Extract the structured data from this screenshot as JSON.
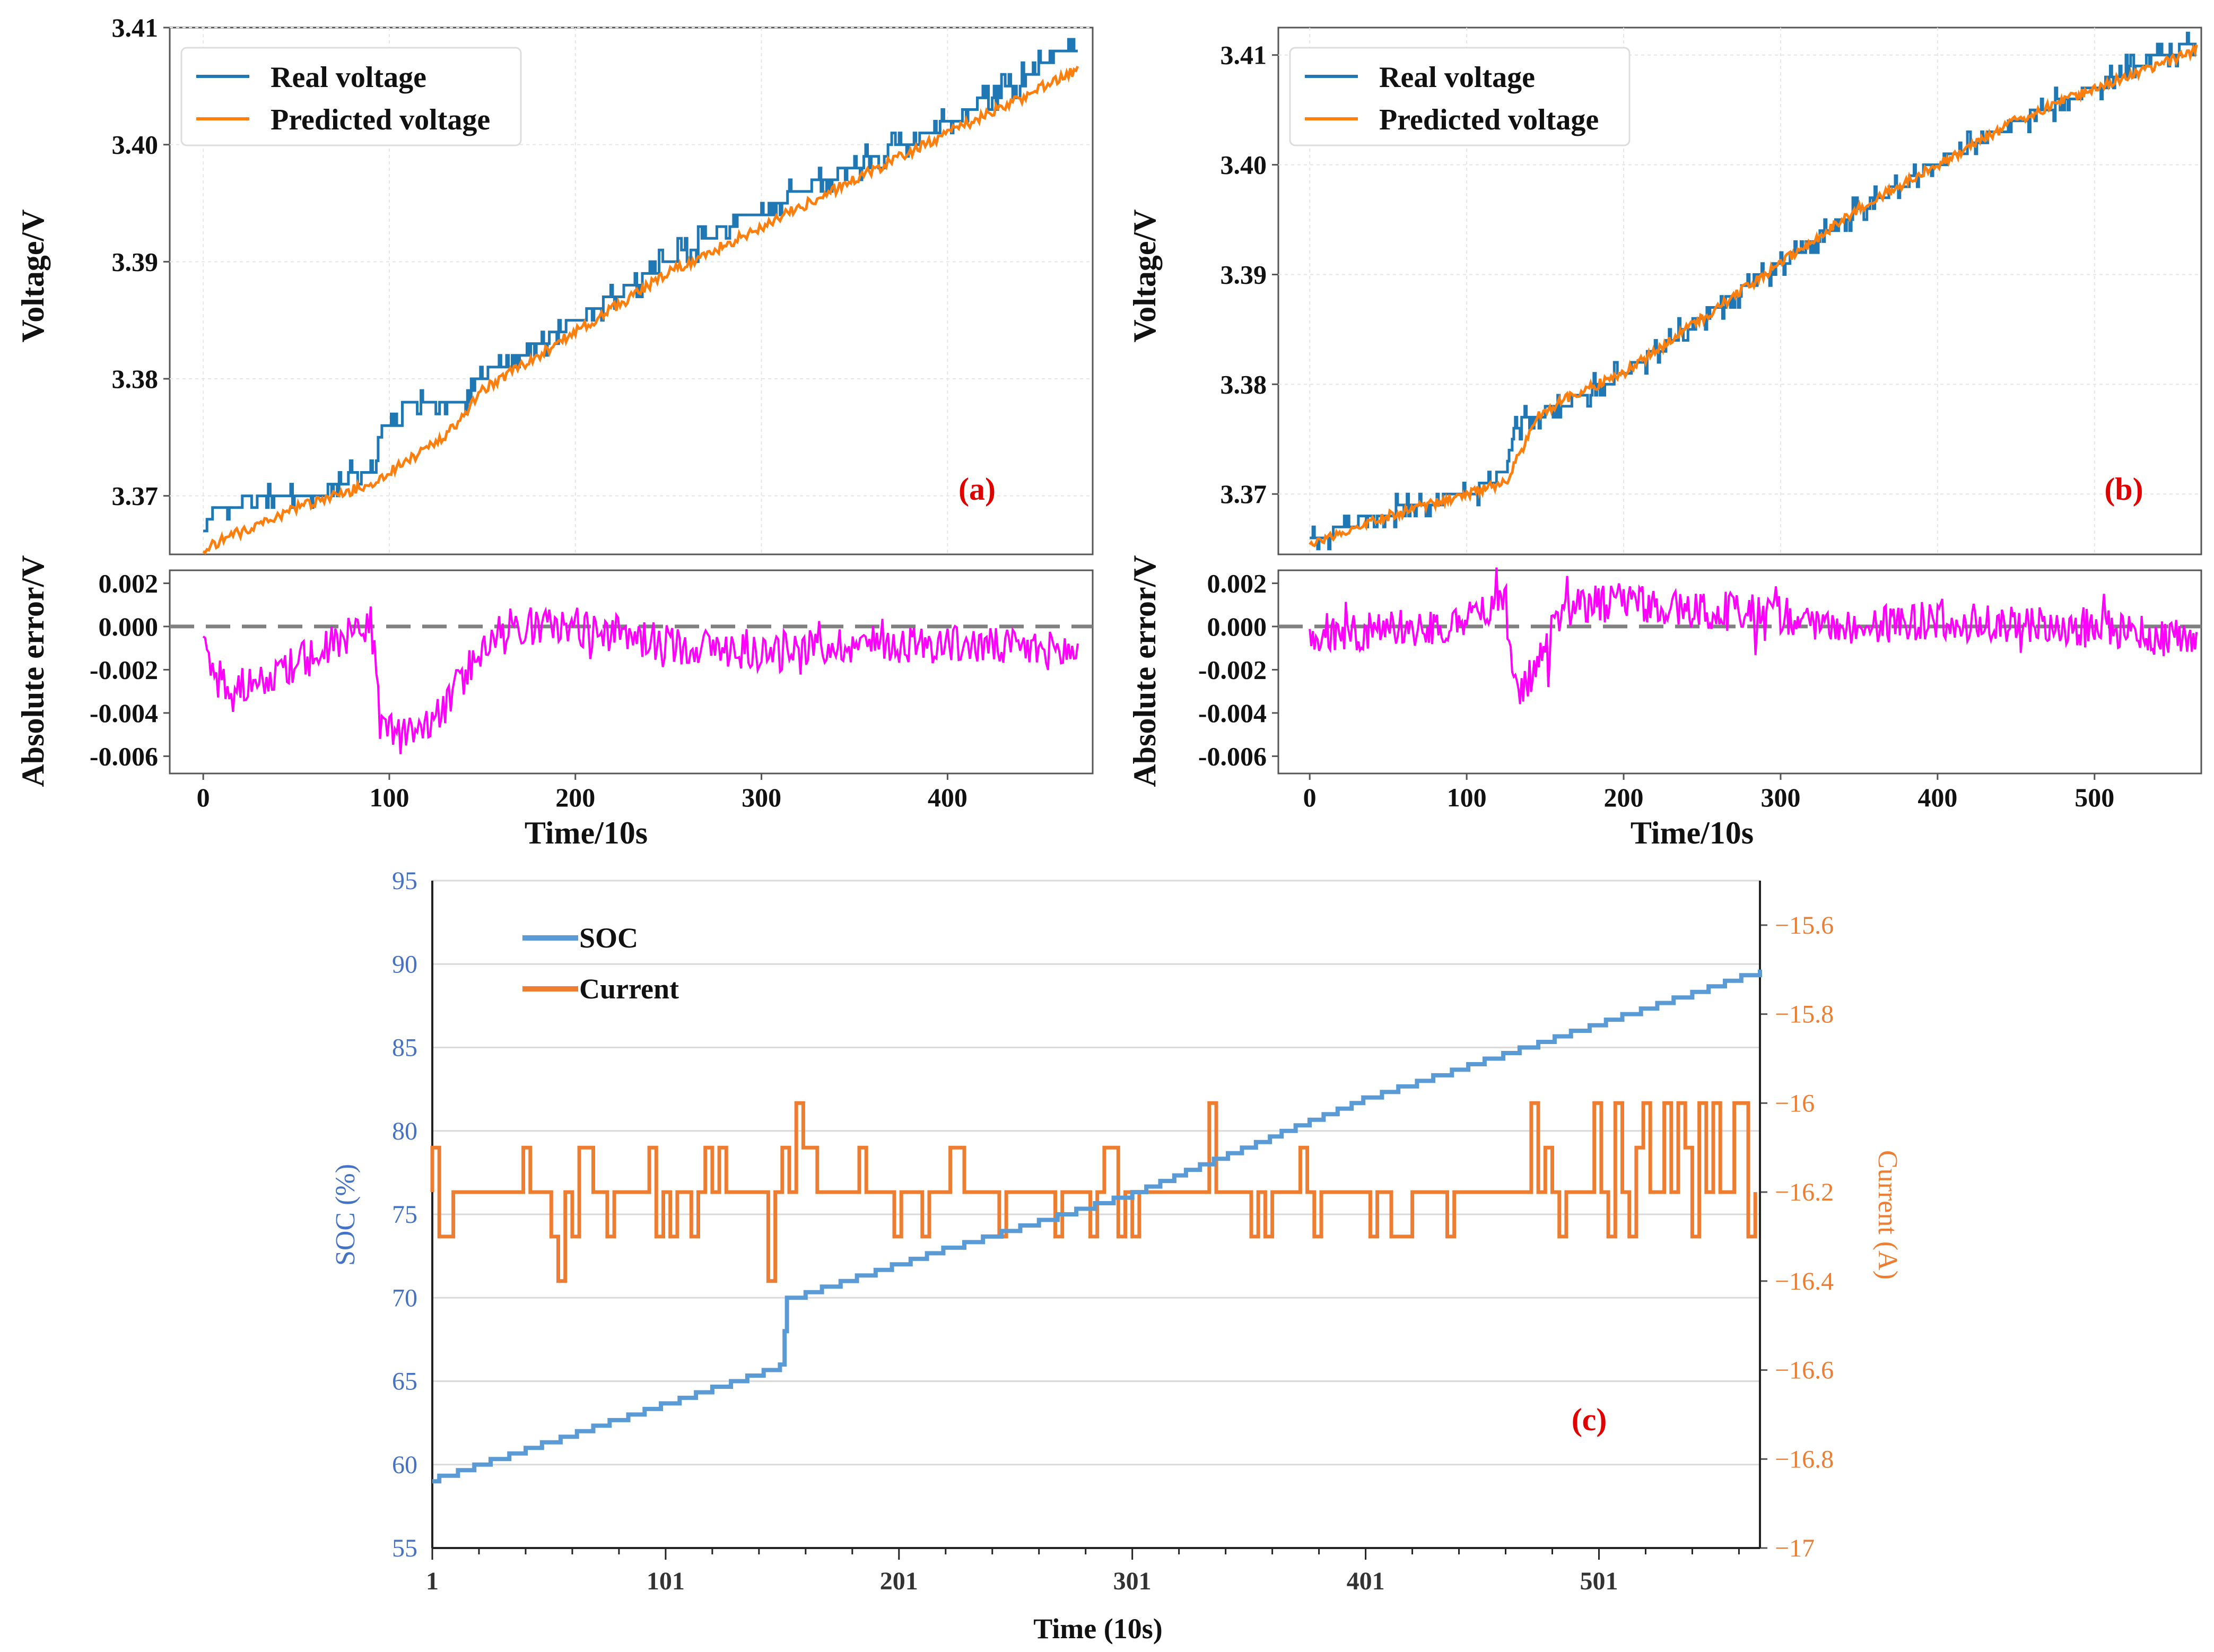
{
  "colors": {
    "real": "#1f77b4",
    "predicted": "#ff7f0e",
    "error": "#ff00ff",
    "zero_line": "#808080",
    "soc": "#5b9bd5",
    "current": "#ed7d31",
    "tag": "#e00000"
  },
  "chart_data": [
    {
      "type": "line",
      "panel": "a",
      "tag": "(a)",
      "ylabel": "Voltage/V",
      "ylim": [
        3.365,
        3.41
      ],
      "yticks": [
        "3.37",
        "3.38",
        "3.39",
        "3.40",
        "3.41"
      ],
      "xlim": [
        -18,
        478
      ],
      "legend_position": "top-left",
      "grid": true,
      "series": [
        {
          "name": "Real voltage",
          "anchors": [
            [
              0,
              3.367
            ],
            [
              2,
              3.368
            ],
            [
              8,
              3.369
            ],
            [
              30,
              3.37
            ],
            [
              60,
              3.37
            ],
            [
              85,
              3.372
            ],
            [
              92,
              3.372
            ],
            [
              95,
              3.376
            ],
            [
              105,
              3.376
            ],
            [
              108,
              3.378
            ],
            [
              140,
              3.378
            ],
            [
              145,
              3.38
            ],
            [
              160,
              3.381
            ],
            [
              200,
              3.385
            ],
            [
              240,
              3.389
            ],
            [
              280,
              3.393
            ],
            [
              320,
              3.396
            ],
            [
              360,
              3.399
            ],
            [
              390,
              3.401
            ],
            [
              420,
              3.404
            ],
            [
              445,
              3.406
            ],
            [
              460,
              3.408
            ],
            [
              470,
              3.408
            ]
          ]
        },
        {
          "name": "Predicted voltage",
          "anchors": [
            [
              0,
              3.3655
            ],
            [
              50,
              3.369
            ],
            [
              90,
              3.371
            ],
            [
              100,
              3.372
            ],
            [
              130,
              3.375
            ],
            [
              150,
              3.379
            ],
            [
              200,
              3.384
            ],
            [
              250,
              3.389
            ],
            [
              300,
              3.393
            ],
            [
              350,
              3.397
            ],
            [
              400,
              3.401
            ],
            [
              440,
              3.404
            ],
            [
              470,
              3.4065
            ]
          ]
        }
      ]
    },
    {
      "type": "line",
      "panel": "a-error",
      "xlabel": "Time/10s",
      "ylabel": "Absolute error/V",
      "ylim": [
        -0.0068,
        0.0026
      ],
      "yticks": [
        "0.002",
        "0.000",
        "-0.002",
        "-0.004",
        "-0.006"
      ],
      "xlim": [
        -18,
        478
      ],
      "xticks": [
        "0",
        "100",
        "200",
        "300",
        "400"
      ],
      "series": [
        {
          "name": "",
          "anchors": [
            [
              0,
              -0.001
            ],
            [
              10,
              -0.0028
            ],
            [
              40,
              -0.0022
            ],
            [
              70,
              -0.0008
            ],
            [
              85,
              -0.0002
            ],
            [
              90,
              0.0005
            ],
            [
              95,
              -0.0045
            ],
            [
              105,
              -0.005
            ],
            [
              115,
              -0.0052
            ],
            [
              130,
              -0.0038
            ],
            [
              145,
              -0.0015
            ],
            [
              160,
              0.0
            ],
            [
              200,
              0.0
            ],
            [
              250,
              -0.0008
            ],
            [
              300,
              -0.0012
            ],
            [
              350,
              -0.0008
            ],
            [
              400,
              -0.0008
            ],
            [
              470,
              -0.0012
            ]
          ]
        }
      ]
    },
    {
      "type": "line",
      "panel": "b",
      "tag": "(b)",
      "ylabel": "Voltage/V",
      "ylim": [
        3.3645,
        3.4125
      ],
      "yticks": [
        "3.37",
        "3.38",
        "3.39",
        "3.40",
        "3.41"
      ],
      "xlim": [
        -20,
        568
      ],
      "legend_position": "top-left",
      "grid": true,
      "series": [
        {
          "name": "Real voltage",
          "anchors": [
            [
              0,
              3.366
            ],
            [
              10,
              3.366
            ],
            [
              20,
              3.367
            ],
            [
              40,
              3.368
            ],
            [
              70,
              3.369
            ],
            [
              100,
              3.37
            ],
            [
              115,
              3.371
            ],
            [
              125,
              3.372
            ],
            [
              130,
              3.376
            ],
            [
              140,
              3.377
            ],
            [
              160,
              3.378
            ],
            [
              200,
              3.381
            ],
            [
              250,
              3.386
            ],
            [
              300,
              3.391
            ],
            [
              350,
              3.396
            ],
            [
              400,
              3.4
            ],
            [
              450,
              3.404
            ],
            [
              500,
              3.407
            ],
            [
              540,
              3.41
            ],
            [
              565,
              3.411
            ]
          ]
        },
        {
          "name": "Predicted voltage",
          "anchors": [
            [
              0,
              3.3655
            ],
            [
              50,
              3.368
            ],
            [
              100,
              3.37
            ],
            [
              125,
              3.371
            ],
            [
              135,
              3.374
            ],
            [
              145,
              3.377
            ],
            [
              160,
              3.3785
            ],
            [
              200,
              3.381
            ],
            [
              250,
              3.386
            ],
            [
              300,
              3.391
            ],
            [
              350,
              3.396
            ],
            [
              400,
              3.4
            ],
            [
              450,
              3.404
            ],
            [
              500,
              3.407
            ],
            [
              540,
              3.409
            ],
            [
              565,
              3.4105
            ]
          ]
        }
      ]
    },
    {
      "type": "line",
      "panel": "b-error",
      "xlabel": "Time/10s",
      "ylabel": "Absolute error/V",
      "ylim": [
        -0.0068,
        0.0026
      ],
      "yticks": [
        "0.002",
        "0.000",
        "-0.002",
        "-0.004",
        "-0.006"
      ],
      "xlim": [
        -20,
        568
      ],
      "xticks": [
        "0",
        "100",
        "200",
        "300",
        "400",
        "500"
      ],
      "series": [
        {
          "name": "",
          "anchors": [
            [
              0,
              -0.0003
            ],
            [
              50,
              -0.0002
            ],
            [
              100,
              0.0003
            ],
            [
              120,
              0.0009
            ],
            [
              125,
              0.001
            ],
            [
              130,
              -0.003
            ],
            [
              135,
              -0.003
            ],
            [
              150,
              -0.0012
            ],
            [
              160,
              0.0008
            ],
            [
              200,
              0.0012
            ],
            [
              250,
              0.0008
            ],
            [
              300,
              0.0005
            ],
            [
              350,
              0.0
            ],
            [
              400,
              0.0003
            ],
            [
              450,
              0.0
            ],
            [
              500,
              0.0
            ],
            [
              540,
              -0.0005
            ],
            [
              565,
              -0.0006
            ]
          ]
        }
      ]
    },
    {
      "type": "line",
      "panel": "c",
      "tag": "(c)",
      "xlabel": "Time (10s)",
      "ylabel": "SOC (%)",
      "y2label": "Current (A)",
      "ylim": [
        55,
        95
      ],
      "y2lim": [
        -17,
        -15.5
      ],
      "yticks": [
        "95",
        "90",
        "85",
        "80",
        "75",
        "70",
        "65",
        "60",
        "55"
      ],
      "y2ticks": [
        "−15.6",
        "−15.8",
        "−16",
        "−16.2",
        "−16.4",
        "−16.6",
        "−16.8",
        "−17"
      ],
      "xlim": [
        1,
        570
      ],
      "xticks": [
        "1",
        "101",
        "201",
        "301",
        "401",
        "501"
      ],
      "legend_position": "top-left",
      "series": [
        {
          "name": "SOC",
          "anchors": [
            [
              1,
              59.2
            ],
            [
              150,
              66.0
            ],
            [
              151,
              66.0
            ],
            [
              153,
              70.0
            ],
            [
              220,
              73.0
            ],
            [
              300,
              76.3
            ],
            [
              400,
              82.0
            ],
            [
              500,
              86.5
            ],
            [
              570,
              89.7
            ]
          ]
        },
        {
          "name": "Current",
          "base": -16.2,
          "range": [
            -16.4,
            -16.0
          ]
        }
      ]
    }
  ]
}
